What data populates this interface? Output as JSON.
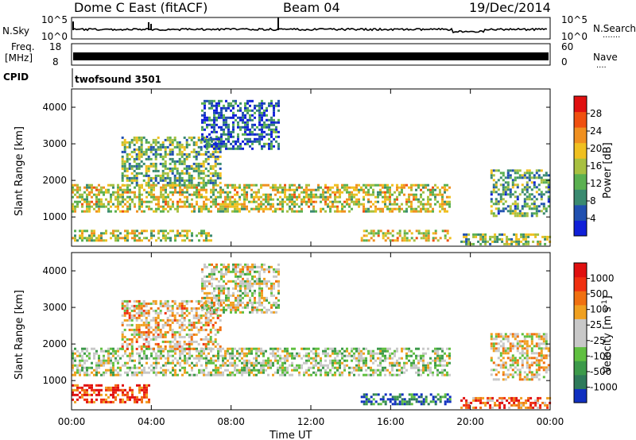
{
  "header": {
    "title": "Dome C East (fitACF)",
    "beam": "Beam 04",
    "date": "19/Dec/2014"
  },
  "nsky_panel": {
    "left_label": "N.Sky",
    "left_ticks": [
      "10^5",
      "10^0"
    ],
    "right_label": "N.Search",
    "right_ticks": [
      "10^5",
      "10^0"
    ],
    "right_legend_dots": "·······"
  },
  "freq_panel": {
    "left_label_1": "Freq.",
    "left_label_2": "[MHz]",
    "left_ticks": [
      "18",
      "8"
    ],
    "right_label": "Nave",
    "right_ticks": [
      "60",
      "0"
    ],
    "right_legend_dots": "····"
  },
  "cpid": {
    "label": "CPID",
    "value": "twofsound 3501"
  },
  "chart_data": [
    {
      "type": "heatmap",
      "name": "power",
      "ylabel": "Slant Range [km]",
      "y_ticks": [
        "1000",
        "2000",
        "3000",
        "4000"
      ],
      "ylim": [
        200,
        4500
      ],
      "xlim_hours": [
        0,
        24
      ],
      "colorbar": {
        "label": "Power [dB]",
        "ticks": [
          "4",
          "8",
          "12",
          "16",
          "20",
          "24",
          "28"
        ],
        "colors": [
          "#1020d8",
          "#2050b0",
          "#3a8a70",
          "#5ab050",
          "#a8c040",
          "#f0c020",
          "#f09020",
          "#f05010",
          "#e01010"
        ]
      },
      "bands": [
        {
          "t0": 0.0,
          "t1": 19.0,
          "r0": 1100,
          "r1": 1900,
          "level": 0.55
        },
        {
          "t0": 0.0,
          "t1": 7.0,
          "r0": 350,
          "r1": 650,
          "level": 0.5
        },
        {
          "t0": 2.5,
          "t1": 7.5,
          "r0": 1800,
          "r1": 3200,
          "level": 0.4
        },
        {
          "t0": 6.5,
          "t1": 10.5,
          "r0": 2800,
          "r1": 4200,
          "level": 0.2
        },
        {
          "t0": 14.5,
          "t1": 19.0,
          "r0": 350,
          "r1": 650,
          "level": 0.6
        },
        {
          "t0": 19.5,
          "t1": 24.0,
          "r0": 250,
          "r1": 550,
          "level": 0.45
        },
        {
          "t0": 21.0,
          "t1": 24.0,
          "r0": 1000,
          "r1": 2300,
          "level": 0.35
        }
      ]
    },
    {
      "type": "heatmap",
      "name": "velocity",
      "ylabel": "Slant Range [km]",
      "y_ticks": [
        "1000",
        "2000",
        "3000",
        "4000"
      ],
      "ylim": [
        200,
        4500
      ],
      "xlim_hours": [
        0,
        24
      ],
      "x_ticks": [
        "00:00",
        "04:00",
        "08:00",
        "12:00",
        "16:00",
        "20:00",
        "00:00"
      ],
      "xlabel": "Time UT",
      "colorbar": {
        "label": "Velocity [m s",
        "label_sup": "-1",
        "label_close": "]",
        "ticks": [
          "1000",
          "500",
          "100",
          "25",
          "-25",
          "-100",
          "-500",
          "-1000"
        ],
        "colors": [
          "#1030c0",
          "#2e7a5a",
          "#3c9a4a",
          "#60c040",
          "#c8c8c8",
          "#c8c8c8",
          "#f0a020",
          "#f07010",
          "#f03010",
          "#e01010"
        ]
      },
      "bands": [
        {
          "t0": 0.0,
          "t1": 19.0,
          "r0": 1100,
          "r1": 1900,
          "level": 0.45
        },
        {
          "t0": 0.0,
          "t1": 4.0,
          "r0": 350,
          "r1": 900,
          "level": 0.85
        },
        {
          "t0": 2.5,
          "t1": 7.5,
          "r0": 1800,
          "r1": 3200,
          "level": 0.6
        },
        {
          "t0": 6.5,
          "t1": 10.5,
          "r0": 2800,
          "r1": 4200,
          "level": 0.5
        },
        {
          "t0": 14.5,
          "t1": 19.0,
          "r0": 350,
          "r1": 650,
          "level": 0.15
        },
        {
          "t0": 19.5,
          "t1": 24.0,
          "r0": 250,
          "r1": 550,
          "level": 0.8
        },
        {
          "t0": 21.0,
          "t1": 24.0,
          "r0": 1000,
          "r1": 2300,
          "level": 0.55
        }
      ]
    }
  ]
}
